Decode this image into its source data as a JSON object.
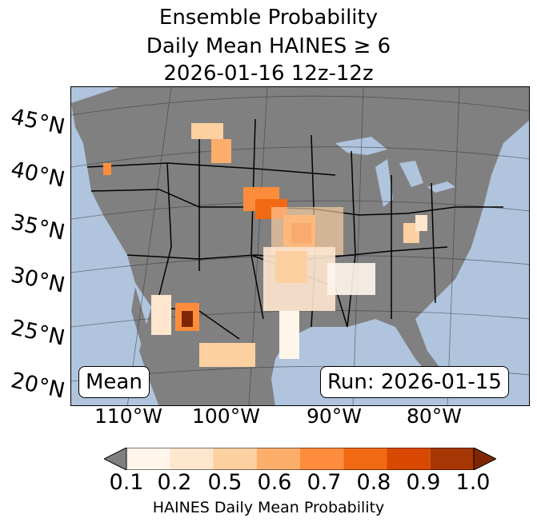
{
  "title": {
    "line1": "Ensemble Probability",
    "line2": "Daily Mean HAINES ≥ 6",
    "line3": "2026-01-16 12z-12z"
  },
  "lat_labels": [
    "45°N",
    "40°N",
    "35°N",
    "30°N",
    "25°N",
    "20°N"
  ],
  "lon_labels": [
    "110°W",
    "100°W",
    "90°W",
    "80°W"
  ],
  "badges": {
    "left": "Mean",
    "right": "Run: 2026-01-15"
  },
  "colorbar": {
    "ticks": [
      "0.1",
      "0.2",
      "0.5",
      "0.6",
      "0.7",
      "0.8",
      "0.9",
      "1.0"
    ],
    "colors": [
      "#fff5eb",
      "#fee6ce",
      "#fdd0a2",
      "#fdae6b",
      "#fd8d3c",
      "#f16913",
      "#d94801",
      "#a63603"
    ],
    "under_color": "#808080",
    "over_color": "#7f2704",
    "label": "HAINES Daily Mean Probability"
  },
  "colors": {
    "ocean": "#b0c4de",
    "land": "#808080",
    "border": "#000000"
  }
}
